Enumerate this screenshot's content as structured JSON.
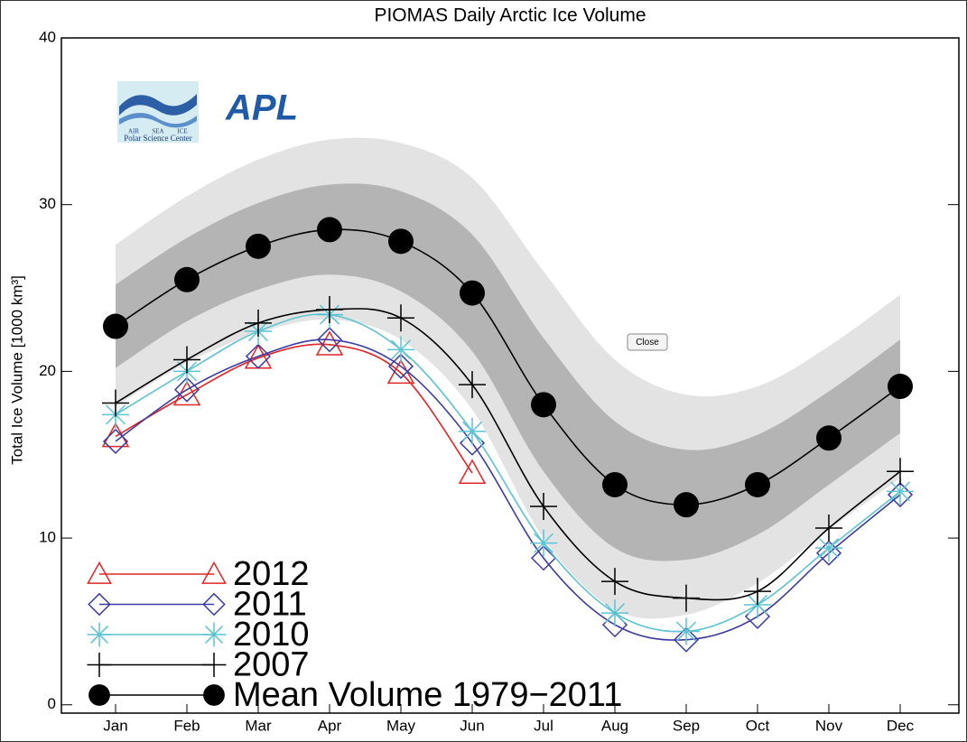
{
  "chart_data": {
    "type": "line",
    "title": "PIOMAS Daily Arctic Ice Volume",
    "y_label": "Total Ice Volume [1000 km³]",
    "categories": [
      "Jan",
      "Feb",
      "Mar",
      "Apr",
      "May",
      "Jun",
      "Jul",
      "Aug",
      "Sep",
      "Oct",
      "Nov",
      "Dec"
    ],
    "ylim": [
      -0.5,
      40
    ],
    "yticks": [
      0,
      10,
      20,
      30,
      40
    ],
    "bands": [
      {
        "color": "#e3e3e3",
        "upper": [
          27.6,
          30.5,
          32.7,
          33.9,
          33.7,
          31.6,
          26.0,
          20.7,
          18.6,
          19.1,
          21.5,
          24.6
        ],
        "lower": [
          17.9,
          20.5,
          22.3,
          23.1,
          21.9,
          17.7,
          10.0,
          5.7,
          5.4,
          7.3,
          10.5,
          13.6
        ]
      },
      {
        "color": "#b4b4b4",
        "upper": [
          25.2,
          28.0,
          30.1,
          31.2,
          30.8,
          28.2,
          22.0,
          17.0,
          15.3,
          16.2,
          18.8,
          21.9
        ],
        "lower": [
          20.2,
          23.0,
          24.9,
          25.8,
          24.8,
          21.2,
          14.0,
          9.4,
          8.7,
          10.2,
          13.2,
          16.3
        ]
      }
    ],
    "series": [
      {
        "name": "2012",
        "color": "#e02626",
        "marker": "triangle",
        "values": [
          16.1,
          18.6,
          20.8,
          21.6,
          19.9,
          13.9,
          null,
          null,
          null,
          null,
          null,
          null
        ]
      },
      {
        "name": "2011",
        "color": "#3b3ba3",
        "marker": "diamond",
        "values": [
          15.8,
          18.9,
          20.9,
          21.9,
          20.3,
          15.7,
          8.8,
          4.8,
          3.9,
          5.3,
          9.1,
          12.6
        ]
      },
      {
        "name": "2010",
        "color": "#5cc3d3",
        "marker": "asterisk",
        "values": [
          17.4,
          20.0,
          22.4,
          23.4,
          21.3,
          16.4,
          9.7,
          5.5,
          4.4,
          6.0,
          9.4,
          12.8
        ]
      },
      {
        "name": "2007",
        "color": "#000000",
        "marker": "plus",
        "values": [
          18.1,
          20.7,
          22.9,
          23.7,
          23.2,
          19.2,
          11.9,
          7.4,
          6.4,
          6.8,
          10.6,
          14.0
        ]
      },
      {
        "name": "Mean Volume 1979−2011",
        "color": "#000000",
        "marker": "circle",
        "values": [
          22.7,
          25.5,
          27.5,
          28.5,
          27.8,
          24.7,
          18.0,
          13.2,
          12.0,
          13.2,
          16.0,
          19.1
        ]
      }
    ]
  },
  "logos": {
    "psc_words": [
      "AIR",
      "SEA",
      "ICE"
    ],
    "psc_name": "Polar Science Center",
    "apl": "APL"
  },
  "button": {
    "label": "Close"
  }
}
